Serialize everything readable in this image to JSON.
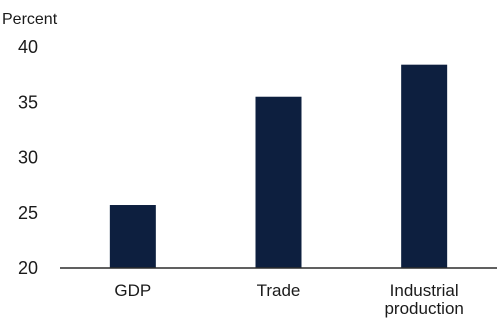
{
  "chart_data": {
    "type": "bar",
    "title": "",
    "xlabel": "",
    "ylabel": "Percent",
    "categories": [
      "GDP",
      "Trade",
      "Industrial\nproduction"
    ],
    "values": [
      25.7,
      35.5,
      38.4
    ],
    "ylim": [
      20,
      40
    ],
    "yticks": [
      20,
      25,
      30,
      35,
      40
    ],
    "grid": false,
    "legend": "none",
    "colors": {
      "bar": "#0d1f3f",
      "axis": "#2b2b2b",
      "text": "#1a1a1a"
    }
  }
}
